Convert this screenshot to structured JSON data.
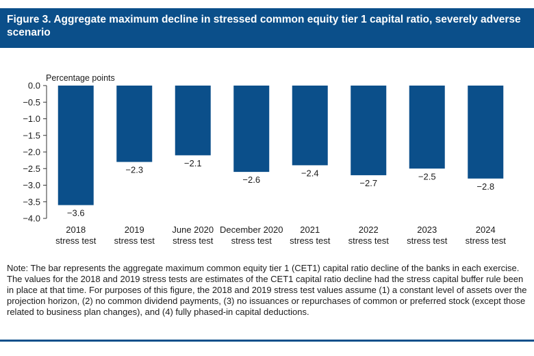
{
  "figure": {
    "title": "Figure 3. Aggregate maximum decline in stressed common equity tier 1 capital ratio, severely adverse scenario",
    "note": "Note: The bar represents the aggregate maximum common equity tier 1 (CET1) capital ratio decline of the banks in each exercise. The values for the 2018 and 2019 stress tests are estimates of the CET1 capital ratio decline had the stress capital buffer rule been in place at that time. For purposes of this figure, the 2018 and 2019 stress test values assume (1) a constant level of assets over the projection horizon, (2) no common dividend payments, (3) no issuances or repurchases of common or preferred stock (except those related to business plan changes), and (4) fully phased-in capital deductions."
  },
  "chart_data": {
    "type": "bar",
    "title": "",
    "ylabel": "Percentage points",
    "xlabel": "",
    "ylim": [
      -4.0,
      0.0
    ],
    "yticks": [
      0.0,
      -0.5,
      -1.0,
      -1.5,
      -2.0,
      -2.5,
      -3.0,
      -3.5,
      -4.0
    ],
    "ytick_labels": [
      "0.0",
      "−0.5",
      "−1.0",
      "−1.5",
      "−2.0",
      "−2.5",
      "−3.0",
      "−3.5",
      "−4.0"
    ],
    "categories": [
      [
        "2018",
        "stress test"
      ],
      [
        "2019",
        "stress test"
      ],
      [
        "June 2020",
        "stress test"
      ],
      [
        "December 2020",
        "stress test"
      ],
      [
        "2021",
        "stress test"
      ],
      [
        "2022",
        "stress test"
      ],
      [
        "2023",
        "stress test"
      ],
      [
        "2024",
        "stress test"
      ]
    ],
    "values": [
      -3.6,
      -2.3,
      -2.1,
      -2.6,
      -2.4,
      -2.7,
      -2.5,
      -2.8
    ],
    "data_labels": [
      "−3.6",
      "−2.3",
      "−2.1",
      "−2.6",
      "−2.4",
      "−2.7",
      "−2.5",
      "−2.8"
    ],
    "bar_color": "#0b4f8a",
    "grid": false
  }
}
